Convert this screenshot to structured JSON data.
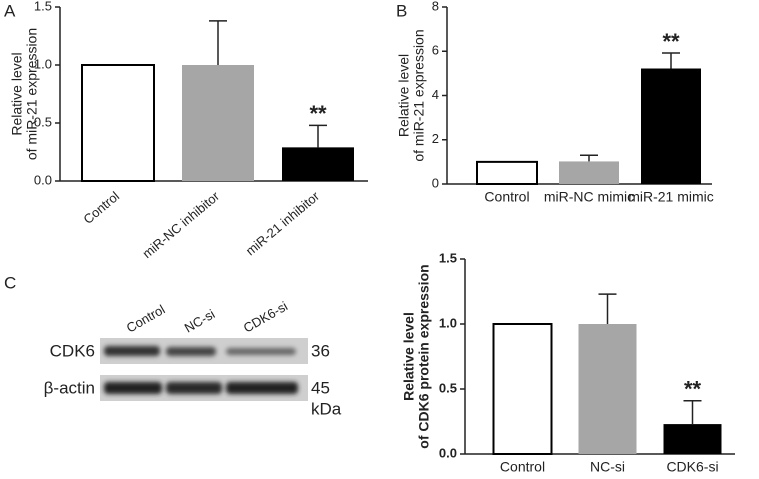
{
  "panel_labels": [
    "A",
    "B",
    "C"
  ],
  "chart_data": [
    {
      "type": "bar",
      "ylabel": [
        "Relative level",
        "of miR-21 expression"
      ],
      "categories": [
        "Control",
        "miR-NC inhibitor",
        "miR-21 inhibitor"
      ],
      "values": [
        1.0,
        1.0,
        0.29
      ],
      "errors": [
        null,
        0.38,
        0.19
      ],
      "significance": [
        null,
        null,
        "**"
      ],
      "colors": [
        "#ffffff",
        "#a6a6a6",
        "#000000"
      ],
      "ylim": [
        0,
        1.5
      ],
      "yticks": [
        {
          "value": 0,
          "label": "0.0"
        },
        0.5,
        {
          "value": 1,
          "label": "1.0"
        },
        1.5
      ]
    },
    {
      "type": "bar",
      "ylabel": [
        "Relative level",
        "of miR-21 expression"
      ],
      "categories": [
        "Control",
        "miR-NC mimic",
        "miR-21 mimic"
      ],
      "values": [
        1.0,
        1.02,
        5.22
      ],
      "errors": [
        null,
        0.28,
        0.7
      ],
      "significance": [
        null,
        null,
        "**"
      ],
      "colors": [
        "#ffffff",
        "#a6a6a6",
        "#000000"
      ],
      "ylim": [
        0,
        8
      ],
      "yticks": [
        0,
        2,
        4,
        6,
        8
      ]
    },
    {
      "type": "bar",
      "ylabel": [
        "Relative level",
        "of CDK6 protein expression"
      ],
      "categories": [
        "Control",
        "NC-si",
        "CDK6-si"
      ],
      "values": [
        1.0,
        1.0,
        0.23
      ],
      "errors": [
        null,
        0.23,
        0.18
      ],
      "significance": [
        null,
        null,
        "**"
      ],
      "colors": [
        "#ffffff",
        "#a6a6a6",
        "#000000"
      ],
      "ylim": [
        0,
        1.5
      ],
      "yticks": [
        {
          "value": 0,
          "label": "0.0"
        },
        0.5,
        {
          "value": 1,
          "label": "1.0"
        },
        1.5
      ]
    }
  ],
  "blot": {
    "lanes": [
      "Control",
      "NC-si",
      "CDK6-si"
    ],
    "rows": [
      {
        "label": "CDK6",
        "size": "36"
      },
      {
        "label": "β-actin",
        "size": "45"
      }
    ],
    "unit": "kDa"
  }
}
